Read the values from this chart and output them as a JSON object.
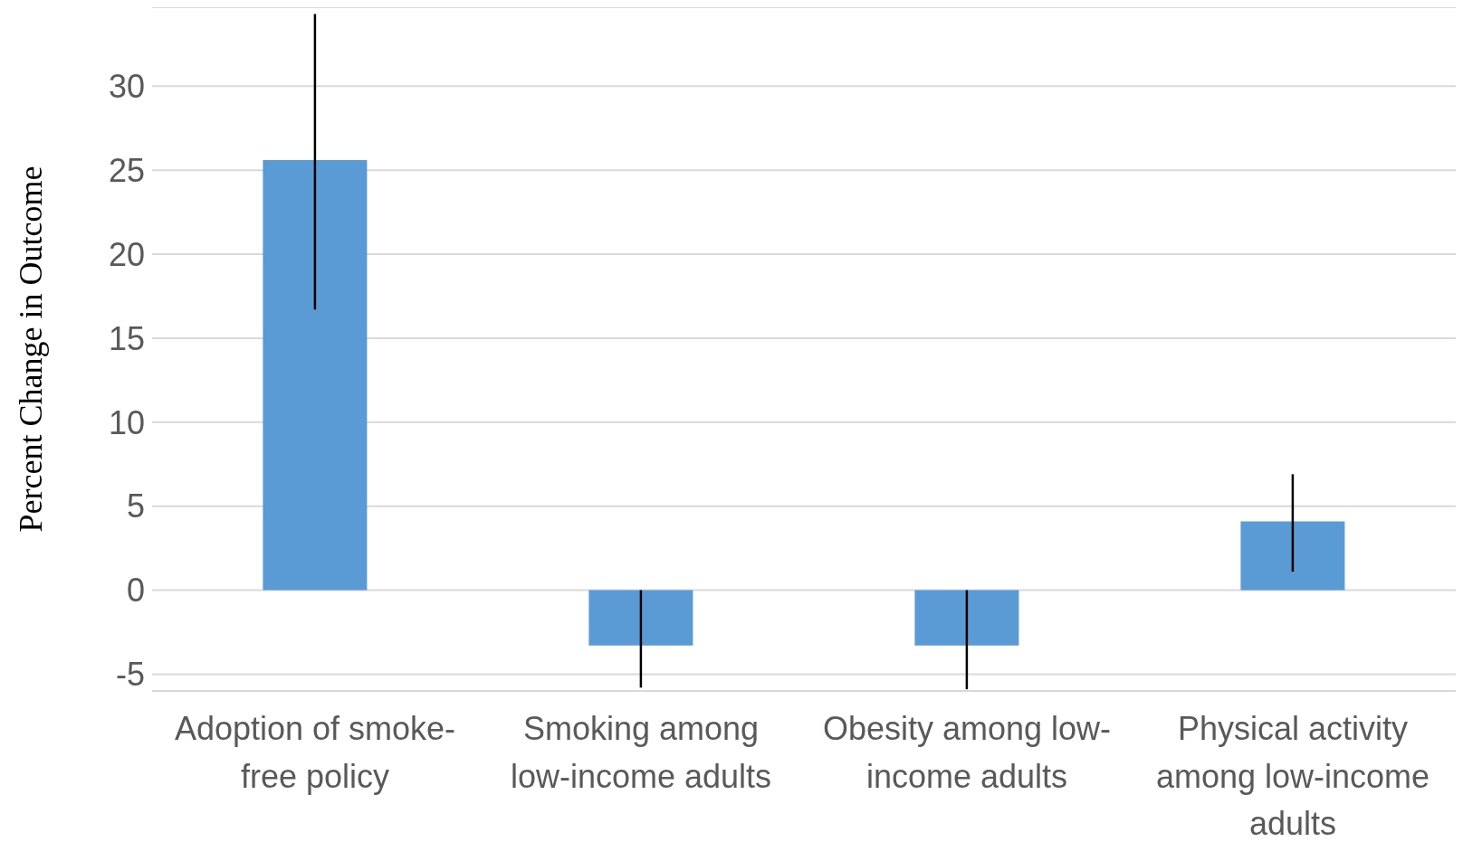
{
  "chart_data": {
    "type": "bar",
    "ylabel": "Percent Change in Outcome",
    "categories": [
      "Adoption of smoke-free policy",
      "Smoking among low-income adults",
      "Obesity among low-income adults",
      "Physical activity among low-income adults"
    ],
    "values": [
      25.6,
      -3.3,
      -3.3,
      4.1
    ],
    "errors": [
      [
        16.7,
        34.3
      ],
      [
        -5.8,
        0
      ],
      [
        -5.9,
        0
      ],
      [
        1.1,
        6.9
      ]
    ],
    "color": "#5b9bd5",
    "ylim": [
      -6,
      34.7
    ],
    "yticks": [
      -5,
      0,
      5,
      10,
      15,
      20,
      25,
      30
    ],
    "grid": "y",
    "legend": false
  }
}
